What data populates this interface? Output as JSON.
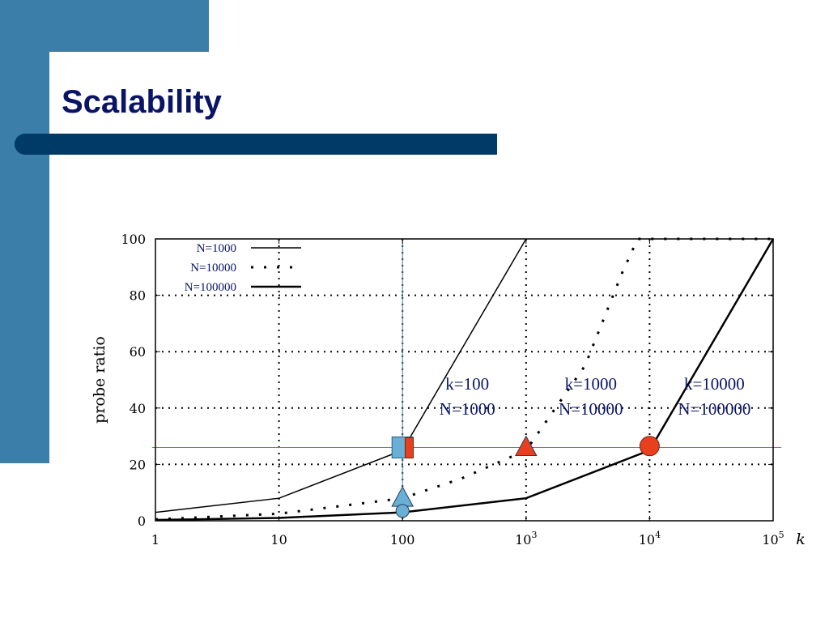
{
  "slide": {
    "title": "Scalability"
  },
  "chart_data": {
    "type": "line",
    "xscale": "log",
    "xlim": [
      1,
      100000
    ],
    "ylim": [
      0,
      100
    ],
    "ylabel": "probe ratio",
    "xlabel": "k",
    "x_ticks": [
      {
        "v": 1,
        "label": "1"
      },
      {
        "v": 10,
        "label": "10"
      },
      {
        "v": 100,
        "label": "100"
      },
      {
        "v": 1000,
        "base": "10",
        "exp": "3"
      },
      {
        "v": 10000,
        "base": "10",
        "exp": "4"
      },
      {
        "v": 100000,
        "base": "10",
        "exp": "5"
      }
    ],
    "y_ticks": [
      0,
      20,
      40,
      60,
      80,
      100
    ],
    "grid": true,
    "legend_position": "top-left",
    "series": [
      {
        "name": "N=1000",
        "style": "solid",
        "width": 1.5,
        "color": "#000000",
        "points": [
          [
            1,
            3
          ],
          [
            10,
            8
          ],
          [
            100,
            25
          ],
          [
            1000,
            100
          ]
        ]
      },
      {
        "name": "N=10000",
        "style": "dotted",
        "width": 3,
        "color": "#000000",
        "points": [
          [
            1,
            0.5
          ],
          [
            10,
            2.5
          ],
          [
            100,
            8
          ],
          [
            300,
            15
          ],
          [
            1000,
            25
          ],
          [
            3000,
            55
          ],
          [
            6000,
            88
          ],
          [
            8000,
            100
          ],
          [
            100000,
            100
          ]
        ]
      },
      {
        "name": "N=100000",
        "style": "solid",
        "width": 2.5,
        "color": "#000000",
        "points": [
          [
            1,
            0.3
          ],
          [
            10,
            1
          ],
          [
            100,
            3
          ],
          [
            1000,
            8
          ],
          [
            10000,
            25
          ],
          [
            100000,
            100
          ]
        ]
      }
    ],
    "reference_lines": [
      {
        "axis": "x",
        "value": 100,
        "color": "#3a7ea9"
      },
      {
        "axis": "y",
        "value": 26,
        "color": "#e85020"
      }
    ],
    "markers": [
      {
        "shape": "square",
        "x": 100,
        "y": 26,
        "color": "#6aafd6"
      },
      {
        "shape": "rect",
        "x": 115,
        "y": 26,
        "color": "#e8401c"
      },
      {
        "shape": "triangle",
        "x": 100,
        "y": 8,
        "color": "#6aafd6"
      },
      {
        "shape": "circle-small",
        "x": 100,
        "y": 3.5,
        "color": "#6aafd6"
      },
      {
        "shape": "triangle",
        "x": 1000,
        "y": 26,
        "color": "#e8401c"
      },
      {
        "shape": "circle",
        "x": 10000,
        "y": 26.5,
        "color": "#e8401c"
      }
    ],
    "annotations": [
      {
        "x": 100,
        "line1": "k=100",
        "line2": "N=1000"
      },
      {
        "x": 1000,
        "line1": "k=1000",
        "line2": "N=10000"
      },
      {
        "x": 10000,
        "line1": "k=10000",
        "line2": "N=100000"
      }
    ]
  }
}
